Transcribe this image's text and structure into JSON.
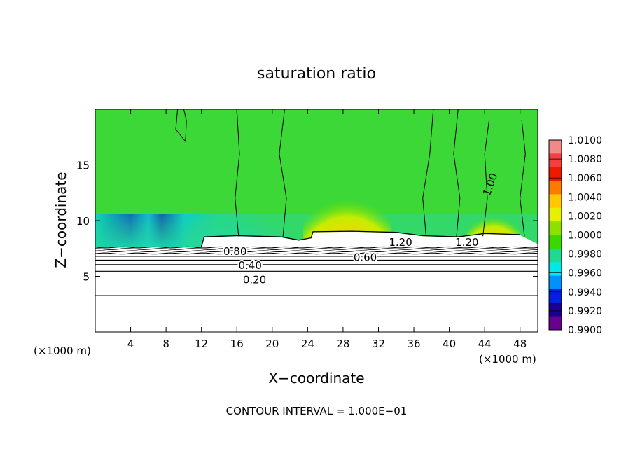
{
  "chart_data": {
    "type": "heatmap",
    "title": "saturation ratio",
    "xlabel": "X−coordinate",
    "ylabel": "Z−coordinate",
    "x_unit_left": "(×1000 m)",
    "x_unit_right": "(×1000 m)",
    "footer": "CONTOUR INTERVAL = 1.000E−01",
    "xlim": [
      0,
      50
    ],
    "ylim": [
      0,
      20
    ],
    "x_ticks": [
      4,
      8,
      12,
      16,
      20,
      24,
      28,
      32,
      36,
      40,
      44,
      48
    ],
    "y_ticks": [
      5,
      10,
      15
    ],
    "colorbar": {
      "labels": [
        "1.0100",
        "1.0080",
        "1.0060",
        "1.0040",
        "1.0020",
        "1.0000",
        "0.9980",
        "0.9960",
        "0.9940",
        "0.9920",
        "0.9900"
      ],
      "colors": [
        "#f08a8a",
        "#f24040",
        "#ec1a00",
        "#ff7a00",
        "#ffc800",
        "#e6f000",
        "#8ee000",
        "#3bd800",
        "#20d890",
        "#00e8e8",
        "#0090ff",
        "#0020e0",
        "#1a0090",
        "#6a0090"
      ]
    },
    "contour_labels": [
      {
        "text": "0.20",
        "x": 18.0,
        "z": 4.75
      },
      {
        "text": "0.40",
        "x": 17.5,
        "z": 6.05
      },
      {
        "text": "0.60",
        "x": 30.5,
        "z": 6.75
      },
      {
        "text": "0.80",
        "x": 15.8,
        "z": 7.3
      },
      {
        "text": "1.20",
        "x": 34.5,
        "z": 8.1
      },
      {
        "text": "1.20",
        "x": 42.0,
        "z": 8.1
      },
      {
        "text": "1.00",
        "x": 45.0,
        "z": 13.5
      }
    ],
    "unsaturated_layer_top": 7.6,
    "upper_contour_levels": [
      0.9,
      1.0,
      1.1,
      1.2
    ]
  }
}
